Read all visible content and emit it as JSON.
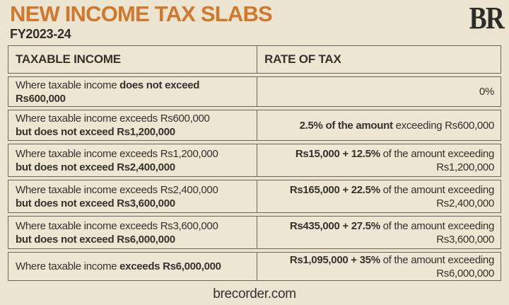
{
  "header": {
    "title": "NEW INCOME TAX SLABS",
    "subtitle": "FY2023-24",
    "logo_text": "BR"
  },
  "colors": {
    "accent_orange": "#d1782c",
    "background_cream": "#ebe4d1",
    "cell_cream": "#ece6d3",
    "text_dark": "#35322a",
    "border_gray": "#6a675a"
  },
  "table": {
    "columns": [
      "TAXABLE INCOME",
      "RATE OF TAX"
    ],
    "rows": [
      {
        "income_regular": "Where taxable income ",
        "income_bold": "does not exceed Rs600,000",
        "rate_bold": "",
        "rate_regular": "0%"
      },
      {
        "income_regular": "Where taxable income exceeds Rs600,000 ",
        "income_bold": "but does not exceed Rs1,200,000",
        "rate_bold": "2.5% of the amount",
        "rate_regular": " exceeding Rs600,000"
      },
      {
        "income_regular": "Where taxable income exceeds Rs1,200,000 ",
        "income_bold": "but does not exceed Rs2,400,000",
        "rate_bold": "Rs15,000 + 12.5%",
        "rate_regular": " of the amount exceeding Rs1,200,000"
      },
      {
        "income_regular": "Where taxable income exceeds Rs2,400,000 ",
        "income_bold": "but does not exceed Rs3,600,000",
        "rate_bold": "Rs165,000 + 22.5%",
        "rate_regular": " of the amount exceeding Rs2,400,000"
      },
      {
        "income_regular": "Where taxable income exceeds Rs3,600,000 ",
        "income_bold": "but does not exceed Rs6,000,000",
        "rate_bold": "Rs435,000 + 27.5%",
        "rate_regular": " of the amount exceeding Rs3,600,000"
      },
      {
        "income_regular": "Where taxable income ",
        "income_bold": "exceeds Rs6,000,000",
        "rate_bold": "Rs1,095,000 + 35%",
        "rate_regular": " of the amount exceeding Rs6,000,000"
      }
    ]
  },
  "footer": {
    "url": "brecorder.com"
  }
}
